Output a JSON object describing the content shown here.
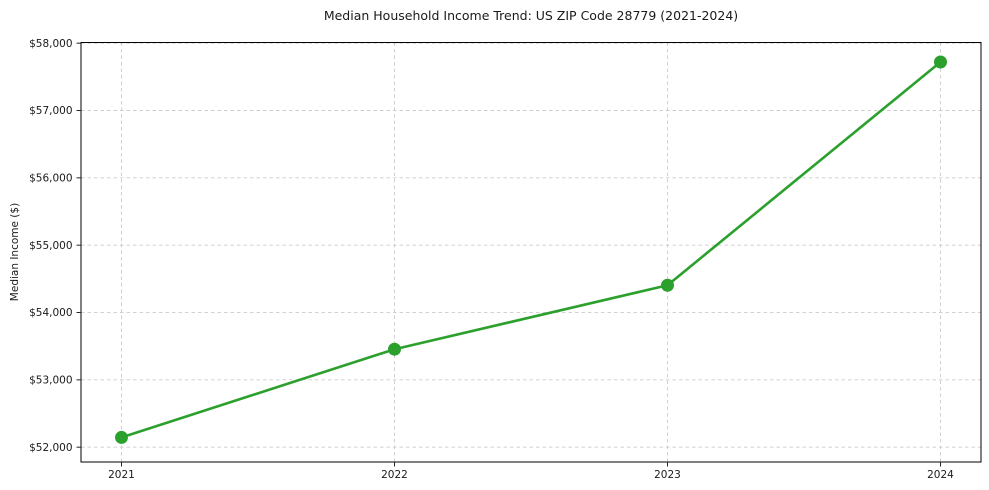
{
  "chart_data": {
    "type": "line",
    "title": "Median Household Income Trend: US ZIP Code 28779 (2021-2024)",
    "ylabel": "Median Income ($)",
    "xlabel": "",
    "categories": [
      "2021",
      "2022",
      "2023",
      "2024"
    ],
    "series": [
      {
        "name": "Median Household Income",
        "values": [
          52145,
          53455,
          54405,
          57720
        ]
      }
    ],
    "ytick_values": [
      52000,
      53000,
      54000,
      55000,
      56000,
      57000,
      58000
    ],
    "ytick_labels": [
      "$52,000",
      "$53,000",
      "$54,000",
      "$55,000",
      "$56,000",
      "$57,000",
      "$58,000"
    ],
    "ylim": [
      51780,
      58010
    ],
    "grid": true,
    "legend_position": "none",
    "line_color": "#2ca02c",
    "marker": "circle",
    "background_color": "#ffffff",
    "text_color": "#1a1a1a",
    "grid_color": "#cccccc"
  }
}
